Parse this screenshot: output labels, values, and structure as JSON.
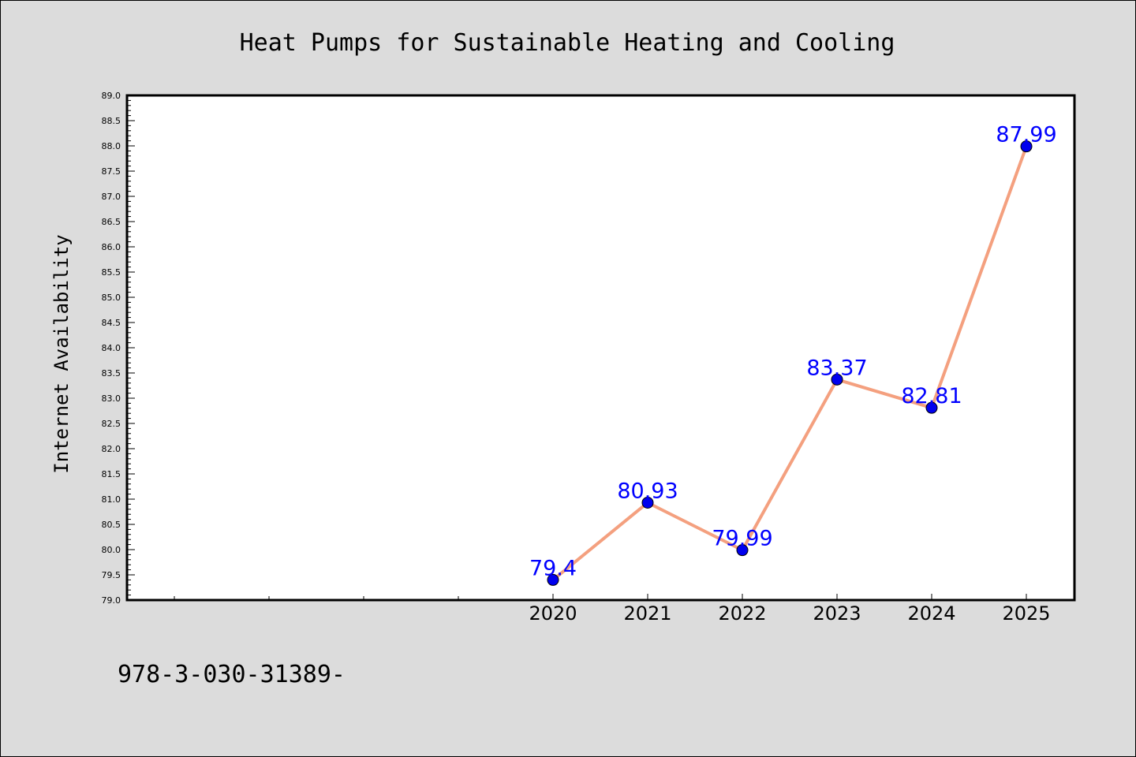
{
  "chart_data": {
    "type": "line",
    "title": "Heat Pumps for Sustainable Heating and Cooling",
    "xlabel": "",
    "ylabel": "Internet Availability",
    "categories": [
      "2020",
      "2021",
      "2022",
      "2023",
      "2024",
      "2025"
    ],
    "series": [
      {
        "values": [
          79.4,
          80.93,
          79.99,
          83.37,
          82.81,
          87.99
        ],
        "labels": [
          "79.4",
          "80.93",
          "79.99",
          "83.37",
          "82.81",
          "87.99"
        ]
      }
    ],
    "ylim": [
      79.0,
      89.0
    ],
    "yticks": [
      "79.0",
      "79.5",
      "80.0",
      "80.5",
      "81.0",
      "81.5",
      "82.0",
      "82.5",
      "83.0",
      "83.5",
      "84.0",
      "84.5",
      "85.0",
      "85.5",
      "86.0",
      "86.5",
      "87.0",
      "87.5",
      "88.0",
      "88.5",
      "89.0"
    ],
    "grid": false,
    "legend": "none",
    "colors": {
      "line": "#f4a07f",
      "marker": "#0000ee",
      "label": "#0000ff",
      "background": "#dcdcdc",
      "plot_area": "#ffffff"
    }
  },
  "footer": {
    "text": "978-3-030-31389-"
  }
}
